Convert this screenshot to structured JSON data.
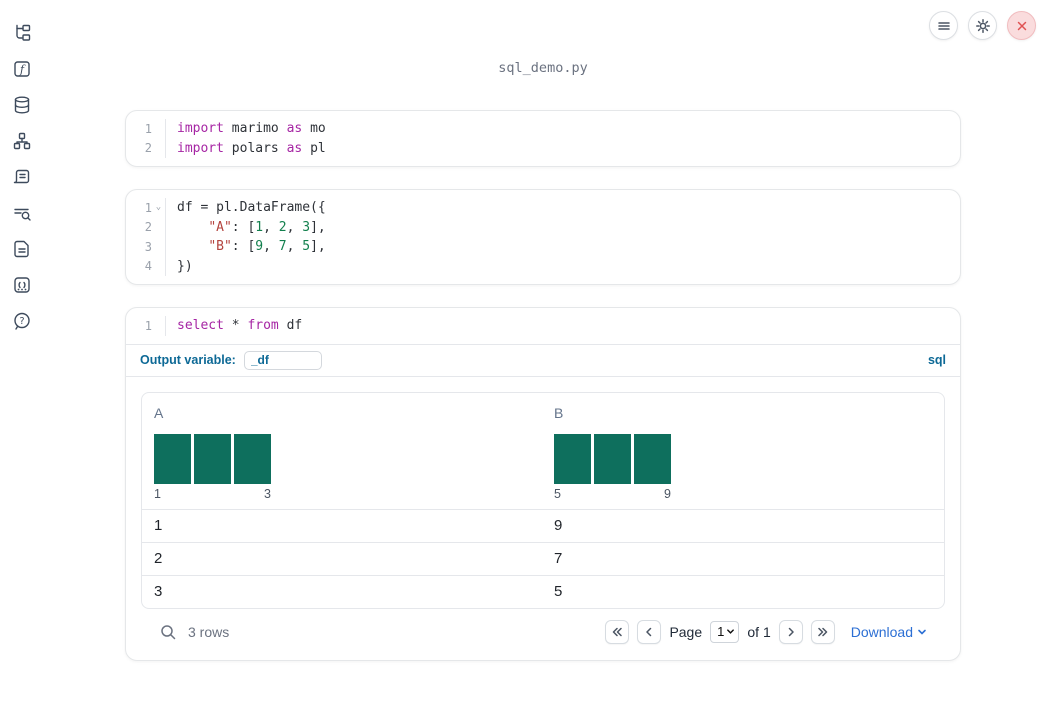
{
  "window": {
    "title": "sql_demo.py"
  },
  "topbar": {
    "buttons": [
      {
        "name": "notebook-menu",
        "icon": "menu-icon"
      },
      {
        "name": "settings",
        "icon": "gear-icon"
      },
      {
        "name": "shutdown",
        "icon": "close-icon"
      }
    ]
  },
  "sidebar": {
    "items": [
      {
        "name": "file-explorer"
      },
      {
        "name": "variables"
      },
      {
        "name": "data-sources"
      },
      {
        "name": "dependencies"
      },
      {
        "name": "scratchpad"
      },
      {
        "name": "logs"
      },
      {
        "name": "documentation"
      },
      {
        "name": "snippets"
      },
      {
        "name": "help"
      }
    ]
  },
  "cells": [
    {
      "name": "imports-cell",
      "lines": [
        {
          "num": "1",
          "tokens": [
            [
              "kw",
              "import"
            ],
            [
              "plain",
              " marimo "
            ],
            [
              "kw",
              "as"
            ],
            [
              "plain",
              " mo"
            ]
          ]
        },
        {
          "num": "2",
          "tokens": [
            [
              "kw",
              "import"
            ],
            [
              "plain",
              " polars "
            ],
            [
              "kw",
              "as"
            ],
            [
              "plain",
              " pl"
            ]
          ]
        }
      ]
    },
    {
      "name": "dataframe-cell",
      "lines": [
        {
          "num": "1",
          "fold": true,
          "tokens": [
            [
              "plain",
              "df = pl.DataFrame({"
            ]
          ]
        },
        {
          "num": "2",
          "tokens": [
            [
              "plain",
              "    "
            ],
            [
              "str",
              "\"A\""
            ],
            [
              "plain",
              ": ["
            ],
            [
              "num",
              "1"
            ],
            [
              "plain",
              ", "
            ],
            [
              "num",
              "2"
            ],
            [
              "plain",
              ", "
            ],
            [
              "num",
              "3"
            ],
            [
              "plain",
              "],"
            ]
          ]
        },
        {
          "num": "3",
          "tokens": [
            [
              "plain",
              "    "
            ],
            [
              "str",
              "\"B\""
            ],
            [
              "plain",
              ": ["
            ],
            [
              "num",
              "9"
            ],
            [
              "plain",
              ", "
            ],
            [
              "num",
              "7"
            ],
            [
              "plain",
              ", "
            ],
            [
              "num",
              "5"
            ],
            [
              "plain",
              "],"
            ]
          ]
        },
        {
          "num": "4",
          "tokens": [
            [
              "plain",
              "})"
            ]
          ]
        }
      ]
    },
    {
      "name": "sql-cell",
      "lines": [
        {
          "num": "1",
          "tokens": [
            [
              "kw",
              "select"
            ],
            [
              "plain",
              " * "
            ],
            [
              "kw",
              "from"
            ],
            [
              "plain",
              " df"
            ]
          ]
        }
      ],
      "output_variable_label": "Output variable:",
      "output_variable_value": "_df",
      "language_badge": "sql"
    }
  ],
  "table": {
    "columns": [
      {
        "label": "A",
        "min": "1",
        "max": "3",
        "bars": [
          1,
          1,
          1
        ]
      },
      {
        "label": "B",
        "min": "5",
        "max": "9",
        "bars": [
          1,
          1,
          1
        ]
      }
    ],
    "rows": [
      [
        "1",
        "9"
      ],
      [
        "2",
        "7"
      ],
      [
        "3",
        "5"
      ]
    ],
    "footer": {
      "row_count": "3 rows",
      "page_label": "Page",
      "page_value": "1",
      "page_total": "of 1",
      "download_label": "Download"
    }
  },
  "colors": {
    "accent_blue": "#0d6996",
    "link_blue": "#2c6fd4",
    "histogram_teal": "#0e6f5d",
    "keyword": "#a626a4",
    "string": "#b4443f",
    "number": "#13804e",
    "close_red": "#e05252"
  }
}
